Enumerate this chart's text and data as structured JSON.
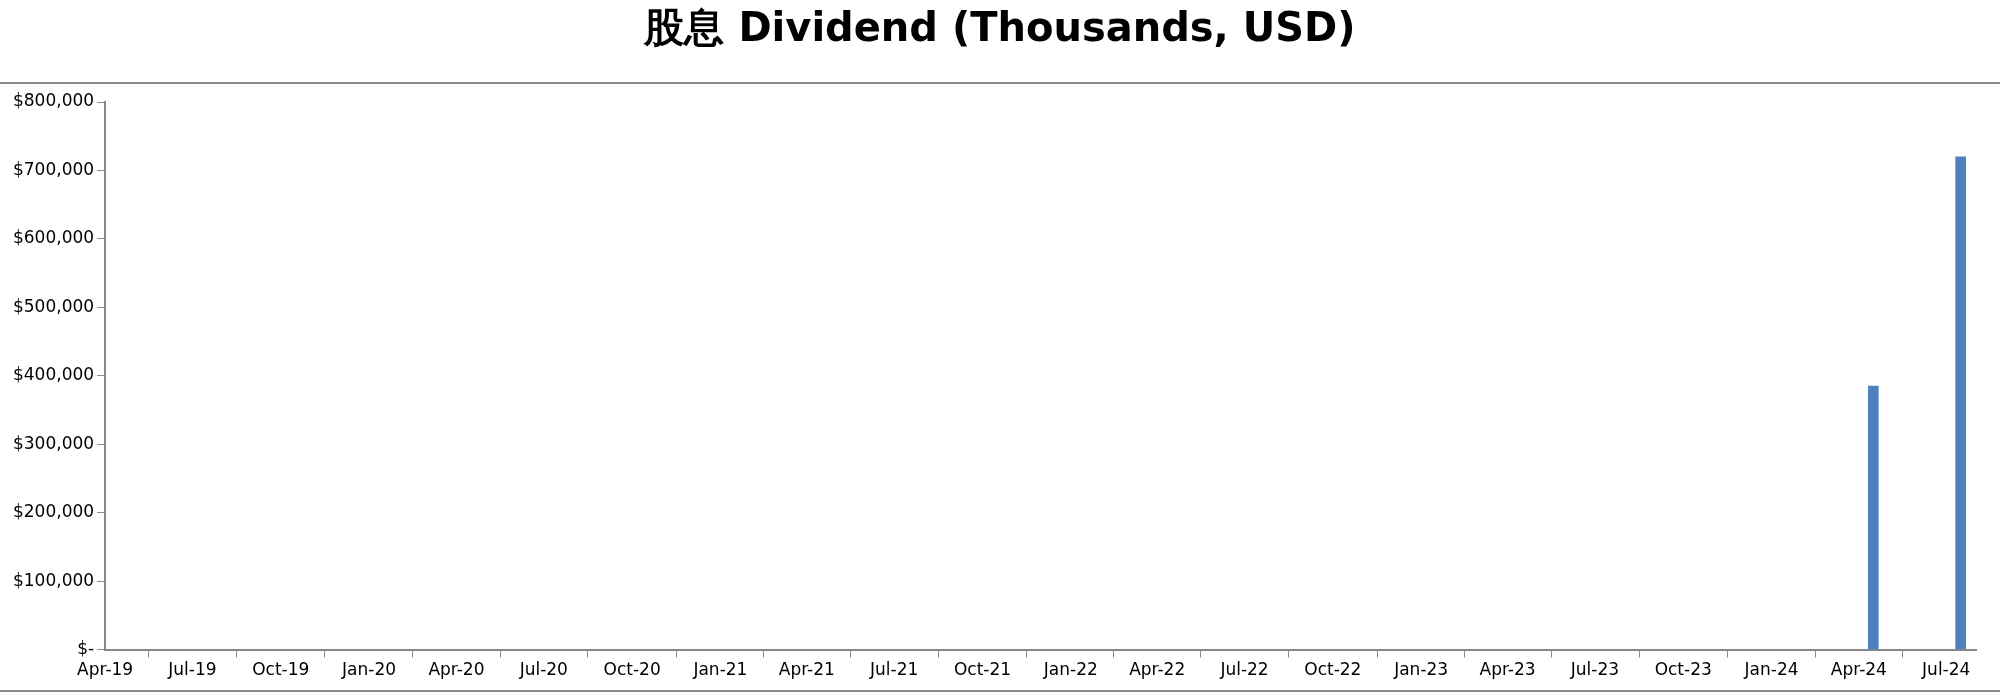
{
  "chart_data": {
    "type": "bar",
    "title": "股息 Dividend (Thousands, USD)",
    "x": [
      "2024-04-16",
      "2024-07-16"
    ],
    "values": [
      385000,
      720000
    ],
    "color": "#4f81bd",
    "xlim": [
      "2019-04-01",
      "2024-08-01"
    ],
    "xticks": [
      {
        "value": "2019-04-01",
        "label": "Apr-19"
      },
      {
        "value": "2019-07-01",
        "label": "Jul-19"
      },
      {
        "value": "2019-10-01",
        "label": "Oct-19"
      },
      {
        "value": "2020-01-01",
        "label": "Jan-20"
      },
      {
        "value": "2020-04-01",
        "label": "Apr-20"
      },
      {
        "value": "2020-07-01",
        "label": "Jul-20"
      },
      {
        "value": "2020-10-01",
        "label": "Oct-20"
      },
      {
        "value": "2021-01-01",
        "label": "Jan-21"
      },
      {
        "value": "2021-04-01",
        "label": "Apr-21"
      },
      {
        "value": "2021-07-01",
        "label": "Jul-21"
      },
      {
        "value": "2021-10-01",
        "label": "Oct-21"
      },
      {
        "value": "2022-01-01",
        "label": "Jan-22"
      },
      {
        "value": "2022-04-01",
        "label": "Apr-22"
      },
      {
        "value": "2022-07-01",
        "label": "Jul-22"
      },
      {
        "value": "2022-10-01",
        "label": "Oct-22"
      },
      {
        "value": "2023-01-01",
        "label": "Jan-23"
      },
      {
        "value": "2023-04-01",
        "label": "Apr-23"
      },
      {
        "value": "2023-07-01",
        "label": "Jul-23"
      },
      {
        "value": "2023-10-01",
        "label": "Oct-23"
      },
      {
        "value": "2024-01-01",
        "label": "Jan-24"
      },
      {
        "value": "2024-04-01",
        "label": "Apr-24"
      },
      {
        "value": "2024-07-01",
        "label": "Jul-24"
      }
    ],
    "ylim": [
      0,
      800000
    ],
    "yticks": [
      {
        "value": 0,
        "label": "$-"
      },
      {
        "value": 100000,
        "label": "$100,000"
      },
      {
        "value": 200000,
        "label": "$200,000"
      },
      {
        "value": 300000,
        "label": "$300,000"
      },
      {
        "value": 400000,
        "label": "$400,000"
      },
      {
        "value": 500000,
        "label": "$500,000"
      },
      {
        "value": 600000,
        "label": "$600,000"
      },
      {
        "value": 700000,
        "label": "$700,000"
      },
      {
        "value": 800000,
        "label": "$800,000"
      }
    ],
    "grid": false,
    "legend": false
  }
}
